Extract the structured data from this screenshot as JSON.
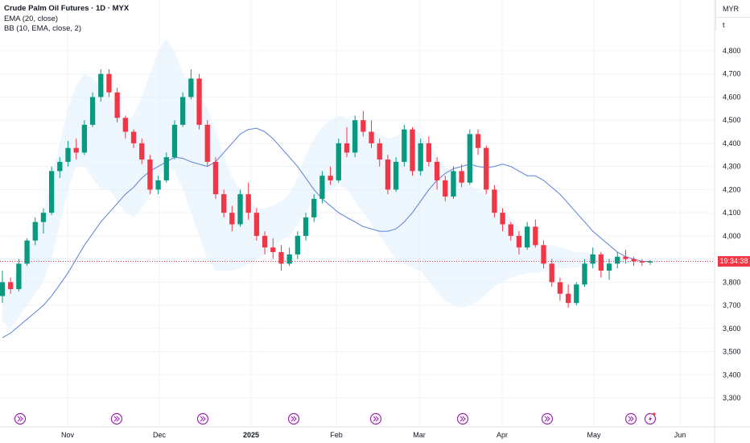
{
  "legend": {
    "title": "Crude Palm Oil Futures · 1D · MYX",
    "indicators": [
      "EMA (20, close)",
      "BB (10, EMA, close, 2)"
    ]
  },
  "axis_header": {
    "currency": "MYR",
    "unit": "t"
  },
  "last_price_label": "19:34:38",
  "colors": {
    "up": "#089981",
    "down": "#f23645",
    "ema": "#5b7fd6",
    "bb_fill": "#e3f2fd",
    "event_icon": "#9c27b0"
  },
  "event_icons": [
    "forward-circle-icon",
    "forward-circle-icon",
    "forward-circle-icon",
    "forward-circle-icon",
    "forward-circle-icon",
    "forward-circle-icon",
    "forward-circle-icon",
    "forward-circle-icon",
    "lightning-circle-icon"
  ],
  "chart_data": {
    "type": "candlestick",
    "ylim": [
      3300,
      4850
    ],
    "y_ticks": [
      "3,300",
      "3,400",
      "3,500",
      "3,600",
      "3,700",
      "3,800",
      "3,900",
      "4,000",
      "4,100",
      "4,200",
      "4,300",
      "4,400",
      "4,500",
      "4,600",
      "4,700",
      "4,800"
    ],
    "x_labels": [
      "Nov",
      "Dec",
      "2025",
      "Feb",
      "Mar",
      "Apr",
      "May",
      "Jun"
    ],
    "last_price": 3890,
    "series": [
      {
        "name": "EMA (20, close)",
        "values": [
          3560,
          3580,
          3610,
          3640,
          3670,
          3700,
          3740,
          3790,
          3840,
          3900,
          3960,
          4010,
          4060,
          4100,
          4140,
          4180,
          4210,
          4250,
          4280,
          4300,
          4320,
          4340,
          4335,
          4320,
          4310,
          4300,
          4320,
          4360,
          4400,
          4440,
          4460,
          4465,
          4450,
          4420,
          4380,
          4340,
          4300,
          4250,
          4200,
          4160,
          4130,
          4100,
          4080,
          4060,
          4040,
          4030,
          4020,
          4020,
          4030,
          4060,
          4100,
          4150,
          4200,
          4240,
          4270,
          4290,
          4300,
          4310,
          4300,
          4295,
          4300,
          4310,
          4300,
          4280,
          4260,
          4260,
          4240,
          4210,
          4180,
          4140,
          4100,
          4060,
          4020,
          3990,
          3960,
          3930,
          3910,
          3900,
          3890,
          3890
        ]
      },
      {
        "name": "BB upper",
        "values": [
          3780,
          3790,
          3860,
          3920,
          4000,
          4100,
          4250,
          4400,
          4550,
          4650,
          4700,
          4680,
          4650,
          4600,
          4560,
          4500,
          4520,
          4600,
          4700,
          4800,
          4850,
          4800,
          4700,
          4650,
          4600,
          4550,
          4450,
          4350,
          4250,
          4200,
          4150,
          4120,
          4120,
          4130,
          4150,
          4180,
          4250,
          4350,
          4420,
          4470,
          4500,
          4520,
          4510,
          4490,
          4470,
          4450,
          4440,
          4420,
          4430,
          4450,
          4460,
          4440,
          4400,
          4350,
          4300,
          4260,
          4240,
          4220,
          4200,
          4180,
          4160,
          4120,
          4080,
          4030,
          3990,
          3970,
          3960,
          3960,
          3950,
          3940,
          3930,
          3930,
          3920,
          3910,
          3900,
          3900,
          3890,
          3890,
          3890,
          3890
        ]
      },
      {
        "name": "BB lower",
        "values": [
          3630,
          3600,
          3650,
          3700,
          3750,
          3800,
          3900,
          4050,
          4200,
          4300,
          4300,
          4250,
          4200,
          4200,
          4150,
          4100,
          4080,
          4120,
          4180,
          4250,
          4300,
          4280,
          4200,
          4100,
          4000,
          3900,
          3850,
          3850,
          3850,
          3860,
          3880,
          3900,
          3920,
          3950,
          3980,
          4000,
          4050,
          4100,
          4150,
          4180,
          4200,
          4220,
          4200,
          4150,
          4100,
          4050,
          4000,
          3950,
          3900,
          3880,
          3860,
          3850,
          3800,
          3760,
          3720,
          3700,
          3690,
          3700,
          3720,
          3750,
          3780,
          3800,
          3820,
          3830,
          3840,
          3840,
          3845,
          3850,
          3860,
          3860,
          3865,
          3870,
          3870,
          3875,
          3880,
          3880,
          3880,
          3885,
          3885,
          3885
        ]
      },
      {
        "name": "Price",
        "candles": [
          [
            3740,
            3850,
            3710,
            3800
          ],
          [
            3800,
            3820,
            3750,
            3770
          ],
          [
            3770,
            3900,
            3760,
            3880
          ],
          [
            3880,
            3990,
            3870,
            3980
          ],
          [
            3980,
            4080,
            3960,
            4060
          ],
          [
            4060,
            4120,
            4010,
            4100
          ],
          [
            4100,
            4300,
            4090,
            4280
          ],
          [
            4280,
            4340,
            4250,
            4320
          ],
          [
            4320,
            4410,
            4300,
            4380
          ],
          [
            4380,
            4420,
            4330,
            4360
          ],
          [
            4360,
            4500,
            4350,
            4480
          ],
          [
            4480,
            4620,
            4470,
            4600
          ],
          [
            4600,
            4720,
            4580,
            4700
          ],
          [
            4700,
            4720,
            4600,
            4620
          ],
          [
            4620,
            4640,
            4490,
            4510
          ],
          [
            4510,
            4520,
            4420,
            4450
          ],
          [
            4450,
            4460,
            4380,
            4400
          ],
          [
            4400,
            4420,
            4310,
            4330
          ],
          [
            4330,
            4350,
            4180,
            4200
          ],
          [
            4200,
            4260,
            4180,
            4240
          ],
          [
            4240,
            4360,
            4230,
            4340
          ],
          [
            4340,
            4500,
            4330,
            4480
          ],
          [
            4480,
            4620,
            4470,
            4600
          ],
          [
            4600,
            4720,
            4590,
            4680
          ],
          [
            4680,
            4700,
            4460,
            4480
          ],
          [
            4480,
            4500,
            4300,
            4320
          ],
          [
            4320,
            4340,
            4160,
            4180
          ],
          [
            4180,
            4200,
            4080,
            4100
          ],
          [
            4100,
            4130,
            4020,
            4050
          ],
          [
            4050,
            4200,
            4040,
            4180
          ],
          [
            4180,
            4230,
            4070,
            4100
          ],
          [
            4100,
            4120,
            3980,
            4000
          ],
          [
            4000,
            4020,
            3920,
            3950
          ],
          [
            3950,
            3990,
            3900,
            3930
          ],
          [
            3930,
            3960,
            3850,
            3880
          ],
          [
            3880,
            3950,
            3870,
            3920
          ],
          [
            3920,
            4020,
            3900,
            4000
          ],
          [
            4000,
            4100,
            3980,
            4080
          ],
          [
            4080,
            4180,
            4060,
            4160
          ],
          [
            4160,
            4280,
            4140,
            4260
          ],
          [
            4260,
            4300,
            4220,
            4240
          ],
          [
            4240,
            4420,
            4230,
            4400
          ],
          [
            4400,
            4470,
            4340,
            4360
          ],
          [
            4360,
            4520,
            4340,
            4500
          ],
          [
            4500,
            4540,
            4430,
            4450
          ],
          [
            4450,
            4500,
            4380,
            4400
          ],
          [
            4400,
            4420,
            4300,
            4330
          ],
          [
            4330,
            4350,
            4180,
            4200
          ],
          [
            4200,
            4340,
            4190,
            4320
          ],
          [
            4320,
            4480,
            4300,
            4460
          ],
          [
            4460,
            4470,
            4260,
            4280
          ],
          [
            4280,
            4420,
            4260,
            4400
          ],
          [
            4400,
            4430,
            4300,
            4320
          ],
          [
            4320,
            4340,
            4200,
            4240
          ],
          [
            4240,
            4260,
            4150,
            4170
          ],
          [
            4170,
            4300,
            4160,
            4280
          ],
          [
            4280,
            4310,
            4210,
            4230
          ],
          [
            4230,
            4460,
            4220,
            4440
          ],
          [
            4440,
            4460,
            4350,
            4380
          ],
          [
            4380,
            4390,
            4180,
            4200
          ],
          [
            4200,
            4220,
            4080,
            4100
          ],
          [
            4100,
            4120,
            4020,
            4050
          ],
          [
            4050,
            4060,
            3980,
            4000
          ],
          [
            4000,
            4020,
            3920,
            3950
          ],
          [
            3950,
            4060,
            3940,
            4040
          ],
          [
            4040,
            4070,
            3950,
            3960
          ],
          [
            3960,
            3980,
            3860,
            3880
          ],
          [
            3880,
            3900,
            3780,
            3800
          ],
          [
            3800,
            3820,
            3720,
            3750
          ],
          [
            3750,
            3790,
            3690,
            3710
          ],
          [
            3710,
            3800,
            3700,
            3790
          ],
          [
            3790,
            3900,
            3780,
            3880
          ],
          [
            3880,
            3950,
            3860,
            3920
          ],
          [
            3920,
            3930,
            3820,
            3850
          ],
          [
            3850,
            3900,
            3810,
            3880
          ],
          [
            3880,
            3930,
            3860,
            3910
          ],
          [
            3910,
            3940,
            3880,
            3900
          ],
          [
            3900,
            3910,
            3870,
            3890
          ],
          [
            3890,
            3900,
            3870,
            3885
          ],
          [
            3885,
            3895,
            3875,
            3890
          ]
        ]
      }
    ]
  }
}
